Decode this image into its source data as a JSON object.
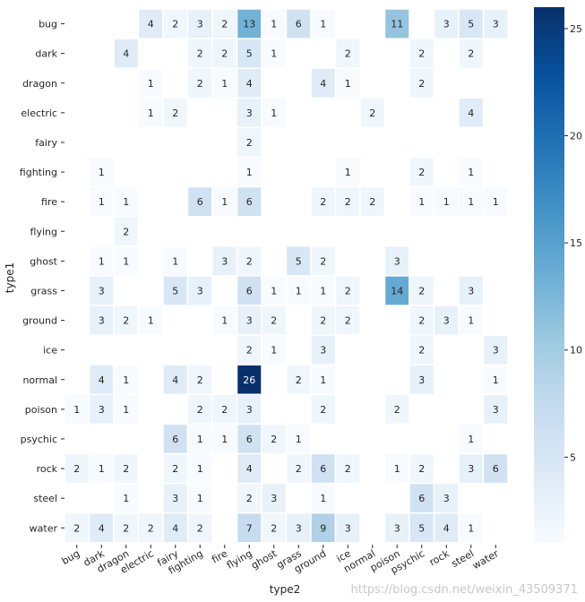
{
  "chart_data": {
    "type": "heatmap",
    "xlabel": "type2",
    "ylabel": "type1",
    "x_categories": [
      "bug",
      "dark",
      "dragon",
      "electric",
      "fairy",
      "fighting",
      "fire",
      "flying",
      "ghost",
      "grass",
      "ground",
      "ice",
      "normal",
      "poison",
      "psychic",
      "rock",
      "steel",
      "water"
    ],
    "y_categories": [
      "bug",
      "dark",
      "dragon",
      "electric",
      "fairy",
      "fighting",
      "fire",
      "flying",
      "ghost",
      "grass",
      "ground",
      "ice",
      "normal",
      "poison",
      "psychic",
      "rock",
      "steel",
      "water"
    ],
    "values": [
      [
        null,
        null,
        null,
        4,
        2,
        3,
        2,
        13,
        1,
        6,
        1,
        null,
        null,
        11,
        null,
        3,
        5,
        3
      ],
      [
        null,
        null,
        4,
        null,
        null,
        2,
        2,
        5,
        1,
        null,
        null,
        2,
        null,
        null,
        2,
        null,
        2,
        null
      ],
      [
        null,
        null,
        null,
        1,
        null,
        2,
        1,
        4,
        null,
        null,
        4,
        1,
        null,
        null,
        2,
        null,
        null,
        null
      ],
      [
        null,
        null,
        null,
        1,
        2,
        null,
        null,
        3,
        1,
        null,
        null,
        null,
        2,
        null,
        null,
        null,
        4,
        null
      ],
      [
        null,
        null,
        null,
        null,
        null,
        null,
        null,
        2,
        null,
        null,
        null,
        null,
        null,
        null,
        null,
        null,
        null,
        null
      ],
      [
        null,
        1,
        null,
        null,
        null,
        null,
        null,
        1,
        null,
        null,
        null,
        1,
        null,
        null,
        2,
        null,
        1,
        null
      ],
      [
        null,
        1,
        1,
        null,
        null,
        6,
        1,
        6,
        null,
        null,
        2,
        2,
        2,
        null,
        1,
        1,
        1,
        1
      ],
      [
        null,
        null,
        2,
        null,
        null,
        null,
        null,
        null,
        null,
        null,
        null,
        null,
        null,
        null,
        null,
        null,
        null,
        null
      ],
      [
        null,
        1,
        1,
        null,
        1,
        null,
        3,
        2,
        null,
        5,
        2,
        null,
        null,
        3,
        null,
        null,
        null,
        null
      ],
      [
        null,
        3,
        null,
        null,
        5,
        3,
        null,
        6,
        1,
        1,
        1,
        2,
        null,
        14,
        2,
        null,
        3,
        null
      ],
      [
        null,
        3,
        2,
        1,
        null,
        null,
        1,
        3,
        2,
        null,
        2,
        2,
        null,
        null,
        2,
        3,
        1,
        null
      ],
      [
        null,
        null,
        null,
        null,
        null,
        null,
        null,
        2,
        1,
        null,
        3,
        null,
        null,
        null,
        2,
        null,
        null,
        3
      ],
      [
        null,
        4,
        1,
        null,
        4,
        2,
        null,
        26,
        null,
        2,
        1,
        null,
        null,
        null,
        3,
        null,
        null,
        1
      ],
      [
        1,
        3,
        1,
        null,
        null,
        2,
        2,
        3,
        null,
        null,
        2,
        null,
        null,
        2,
        null,
        null,
        null,
        3
      ],
      [
        null,
        null,
        null,
        null,
        6,
        1,
        1,
        6,
        2,
        1,
        null,
        null,
        null,
        null,
        null,
        null,
        1,
        null
      ],
      [
        2,
        1,
        2,
        null,
        2,
        1,
        null,
        4,
        null,
        2,
        6,
        2,
        null,
        1,
        2,
        null,
        3,
        6
      ],
      [
        null,
        null,
        1,
        null,
        3,
        1,
        null,
        2,
        3,
        null,
        1,
        null,
        null,
        null,
        6,
        3,
        null,
        null
      ],
      [
        2,
        4,
        2,
        2,
        4,
        2,
        null,
        7,
        2,
        3,
        9,
        3,
        null,
        3,
        5,
        4,
        1,
        null
      ]
    ],
    "colormap": "Blues",
    "vmin": 1,
    "vmax": 26,
    "colorbar_ticks": [
      5,
      10,
      15,
      20,
      25
    ],
    "annotated": true,
    "grid": false,
    "legend": "colorbar-right"
  },
  "footer": {
    "watermark": "https://blog.csdn.net/weixin_43509371"
  }
}
